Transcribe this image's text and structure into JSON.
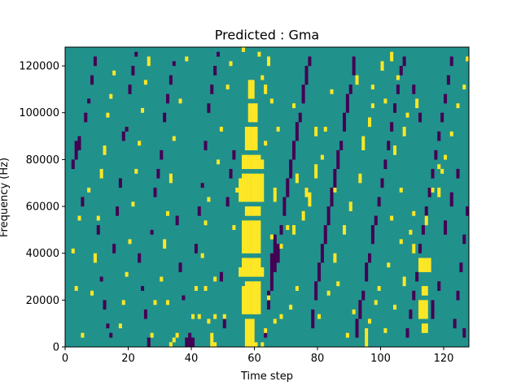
{
  "chart_data": {
    "type": "heatmap",
    "title": "Predicted : Gma",
    "xlabel": "Time step",
    "ylabel": "Frequency (Hz)",
    "xlim": [
      0,
      128
    ],
    "ylim": [
      0,
      128000
    ],
    "xticks": [
      0,
      20,
      40,
      60,
      80,
      100,
      120
    ],
    "yticks": [
      0,
      20000,
      40000,
      60000,
      80000,
      100000,
      120000
    ],
    "grid": false,
    "legend": "none",
    "colormap": "viridis",
    "value_levels": {
      "low": 0,
      "mid": 0.5,
      "high": 1
    },
    "colors": {
      "low": "#440154",
      "mid": "#21918c",
      "high": "#fde725"
    },
    "n_time_steps": 128,
    "n_freq_bins": 64,
    "freq_bin_hz": 2000,
    "high_cells": [
      [
        57,
        0,
        6
      ],
      [
        58,
        0,
        6
      ],
      [
        59,
        0,
        6
      ],
      [
        60,
        0,
        1
      ],
      [
        56,
        7,
        13
      ],
      [
        57,
        7,
        14
      ],
      [
        58,
        7,
        14
      ],
      [
        59,
        7,
        14
      ],
      [
        60,
        7,
        14
      ],
      [
        61,
        7,
        14
      ],
      [
        55,
        15,
        17
      ],
      [
        56,
        15,
        19
      ],
      [
        57,
        15,
        19
      ],
      [
        58,
        15,
        19
      ],
      [
        59,
        15,
        19
      ],
      [
        60,
        15,
        19
      ],
      [
        61,
        15,
        19
      ],
      [
        62,
        15,
        17
      ],
      [
        56,
        20,
        27
      ],
      [
        57,
        20,
        27
      ],
      [
        58,
        20,
        27
      ],
      [
        59,
        20,
        27
      ],
      [
        60,
        20,
        27
      ],
      [
        61,
        20,
        27
      ],
      [
        57,
        28,
        30
      ],
      [
        58,
        28,
        30
      ],
      [
        59,
        28,
        30
      ],
      [
        60,
        28,
        30
      ],
      [
        61,
        28,
        30
      ],
      [
        55,
        31,
        36
      ],
      [
        56,
        31,
        37
      ],
      [
        57,
        31,
        37
      ],
      [
        58,
        31,
        37
      ],
      [
        59,
        31,
        37
      ],
      [
        60,
        31,
        37
      ],
      [
        61,
        31,
        37
      ],
      [
        62,
        31,
        37
      ],
      [
        56,
        38,
        41
      ],
      [
        57,
        38,
        41
      ],
      [
        58,
        38,
        41
      ],
      [
        59,
        38,
        41
      ],
      [
        60,
        38,
        41
      ],
      [
        61,
        38,
        41
      ],
      [
        57,
        42,
        47
      ],
      [
        58,
        42,
        47
      ],
      [
        59,
        42,
        47
      ],
      [
        60,
        42,
        47
      ],
      [
        58,
        48,
        52
      ],
      [
        59,
        48,
        52
      ],
      [
        60,
        48,
        52
      ],
      [
        58,
        53,
        57
      ],
      [
        59,
        53,
        57
      ],
      [
        112,
        16,
        19
      ],
      [
        113,
        16,
        19
      ],
      [
        114,
        16,
        19
      ],
      [
        115,
        16,
        19
      ],
      [
        113,
        11,
        13
      ],
      [
        114,
        11,
        13
      ],
      [
        112,
        6,
        10
      ],
      [
        113,
        6,
        10
      ],
      [
        114,
        6,
        10
      ],
      [
        113,
        3,
        5
      ],
      [
        114,
        3,
        5
      ],
      [
        119,
        37,
        38
      ],
      [
        118,
        32,
        34
      ],
      [
        114,
        26,
        28
      ],
      [
        33,
        0,
        1
      ],
      [
        34,
        1,
        2
      ],
      [
        35,
        2,
        3
      ],
      [
        46,
        0,
        3
      ],
      [
        47,
        0,
        1
      ],
      [
        45,
        5,
        6
      ],
      [
        47,
        6,
        7
      ],
      [
        50,
        6,
        7
      ],
      [
        42,
        6,
        7
      ],
      [
        32,
        9,
        10
      ],
      [
        44,
        12,
        13
      ],
      [
        47,
        14,
        15
      ],
      [
        62,
        0,
        1
      ],
      [
        63,
        3,
        4
      ],
      [
        66,
        5,
        6
      ],
      [
        68,
        6,
        7
      ],
      [
        64,
        10,
        11
      ],
      [
        71,
        8,
        9
      ],
      [
        73,
        12,
        13
      ],
      [
        68,
        21,
        22
      ],
      [
        70,
        25,
        26
      ],
      [
        65,
        23,
        24
      ],
      [
        66,
        31,
        34
      ],
      [
        63,
        43,
        44
      ],
      [
        62,
        57,
        58
      ],
      [
        63,
        54,
        56
      ],
      [
        65,
        52,
        53
      ],
      [
        64,
        60,
        62
      ],
      [
        61,
        62,
        63
      ],
      [
        56,
        63,
        64
      ],
      [
        62,
        38,
        40
      ],
      [
        67,
        46,
        47
      ],
      [
        72,
        24,
        26
      ],
      [
        73,
        35,
        37
      ],
      [
        75,
        27,
        29
      ],
      [
        77,
        30,
        33
      ],
      [
        79,
        36,
        39
      ],
      [
        81,
        40,
        41
      ],
      [
        76,
        32,
        34
      ],
      [
        85,
        33,
        34
      ],
      [
        82,
        46,
        47
      ],
      [
        84,
        54,
        55
      ],
      [
        72,
        51,
        52
      ],
      [
        79,
        45,
        47
      ],
      [
        80,
        6,
        7
      ],
      [
        83,
        11,
        12
      ],
      [
        86,
        13,
        14
      ],
      [
        85,
        18,
        20
      ],
      [
        88,
        24,
        26
      ],
      [
        90,
        29,
        31
      ],
      [
        93,
        35,
        37
      ],
      [
        94,
        42,
        45
      ],
      [
        96,
        47,
        49
      ],
      [
        97,
        51,
        52
      ],
      [
        92,
        56,
        58
      ],
      [
        100,
        59,
        61
      ],
      [
        103,
        61,
        63
      ],
      [
        95,
        0,
        4
      ],
      [
        96,
        5,
        6
      ],
      [
        98,
        9,
        10
      ],
      [
        101,
        3,
        4
      ],
      [
        104,
        8,
        9
      ],
      [
        107,
        13,
        15
      ],
      [
        110,
        20,
        22
      ],
      [
        109,
        24,
        25
      ],
      [
        103,
        27,
        28
      ],
      [
        106,
        33,
        34
      ],
      [
        104,
        41,
        43
      ],
      [
        107,
        45,
        47
      ],
      [
        108,
        49,
        50
      ],
      [
        101,
        52,
        53
      ],
      [
        97,
        55,
        56
      ],
      [
        105,
        57,
        58
      ],
      [
        111,
        51,
        53
      ],
      [
        118,
        38,
        39
      ],
      [
        2,
        20,
        21
      ],
      [
        4,
        27,
        28
      ],
      [
        3,
        12,
        13
      ],
      [
        5,
        2,
        3
      ],
      [
        7,
        33,
        34
      ],
      [
        8,
        11,
        12
      ],
      [
        9,
        18,
        20
      ],
      [
        10,
        27,
        28
      ],
      [
        11,
        36,
        38
      ],
      [
        12,
        41,
        43
      ],
      [
        13,
        49,
        50
      ],
      [
        14,
        53,
        54
      ],
      [
        15,
        58,
        59
      ],
      [
        17,
        4,
        5
      ],
      [
        18,
        9,
        10
      ],
      [
        19,
        15,
        16
      ],
      [
        20,
        22,
        23
      ],
      [
        21,
        30,
        31
      ],
      [
        22,
        37,
        38
      ],
      [
        23,
        43,
        44
      ],
      [
        24,
        50,
        51
      ],
      [
        25,
        56,
        57
      ],
      [
        26,
        60,
        62
      ],
      [
        27,
        2,
        3
      ],
      [
        28,
        9,
        10
      ],
      [
        30,
        14,
        15
      ],
      [
        31,
        21,
        23
      ],
      [
        32,
        28,
        29
      ],
      [
        33,
        35,
        37
      ],
      [
        34,
        44,
        45
      ],
      [
        36,
        52,
        53
      ],
      [
        38,
        61,
        62
      ],
      [
        40,
        6,
        7
      ],
      [
        41,
        12,
        13
      ],
      [
        43,
        19,
        20
      ],
      [
        44,
        26,
        27
      ],
      [
        45,
        31,
        32
      ],
      [
        48,
        39,
        40
      ],
      [
        49,
        46,
        47
      ],
      [
        51,
        55,
        56
      ],
      [
        52,
        60,
        61
      ],
      [
        53,
        25,
        26
      ],
      [
        54,
        33,
        34
      ],
      [
        89,
        2,
        3
      ],
      [
        91,
        7,
        8
      ],
      [
        99,
        12,
        13
      ],
      [
        102,
        17,
        18
      ],
      [
        106,
        22,
        23
      ],
      [
        110,
        28,
        29
      ],
      [
        116,
        33,
        34
      ],
      [
        120,
        40,
        41
      ],
      [
        122,
        45,
        46
      ],
      [
        124,
        51,
        52
      ],
      [
        126,
        55,
        56
      ],
      [
        127,
        61,
        62
      ]
    ],
    "low_cells": [
      [
        2,
        38,
        40
      ],
      [
        3,
        40,
        44
      ],
      [
        4,
        42,
        45
      ],
      [
        5,
        30,
        32
      ],
      [
        6,
        48,
        50
      ],
      [
        7,
        52,
        53
      ],
      [
        8,
        56,
        58
      ],
      [
        9,
        60,
        62
      ],
      [
        10,
        24,
        26
      ],
      [
        11,
        14,
        15
      ],
      [
        12,
        8,
        10
      ],
      [
        13,
        4,
        5
      ],
      [
        14,
        2,
        3
      ],
      [
        15,
        20,
        22
      ],
      [
        16,
        28,
        30
      ],
      [
        17,
        34,
        36
      ],
      [
        18,
        44,
        46
      ],
      [
        19,
        46,
        47
      ],
      [
        20,
        54,
        56
      ],
      [
        21,
        58,
        60
      ],
      [
        22,
        62,
        63
      ],
      [
        23,
        18,
        20
      ],
      [
        24,
        12,
        13
      ],
      [
        25,
        6,
        8
      ],
      [
        26,
        0,
        2
      ],
      [
        27,
        24,
        25
      ],
      [
        28,
        32,
        34
      ],
      [
        29,
        36,
        38
      ],
      [
        30,
        40,
        42
      ],
      [
        31,
        48,
        50
      ],
      [
        32,
        52,
        54
      ],
      [
        33,
        56,
        58
      ],
      [
        34,
        60,
        61
      ],
      [
        35,
        26,
        28
      ],
      [
        36,
        16,
        18
      ],
      [
        37,
        10,
        11
      ],
      [
        38,
        0,
        2
      ],
      [
        39,
        0,
        3
      ],
      [
        40,
        0,
        2
      ],
      [
        41,
        20,
        22
      ],
      [
        42,
        28,
        30
      ],
      [
        43,
        34,
        35
      ],
      [
        44,
        42,
        44
      ],
      [
        45,
        50,
        52
      ],
      [
        46,
        54,
        56
      ],
      [
        47,
        58,
        60
      ],
      [
        48,
        62,
        63
      ],
      [
        49,
        14,
        16
      ],
      [
        50,
        4,
        6
      ],
      [
        51,
        30,
        32
      ],
      [
        52,
        36,
        38
      ],
      [
        53,
        40,
        42
      ],
      [
        63,
        2,
        4
      ],
      [
        64,
        8,
        12
      ],
      [
        65,
        12,
        20
      ],
      [
        66,
        16,
        24
      ],
      [
        67,
        18,
        22
      ],
      [
        68,
        24,
        26
      ],
      [
        69,
        28,
        32
      ],
      [
        70,
        32,
        36
      ],
      [
        71,
        36,
        40
      ],
      [
        72,
        40,
        44
      ],
      [
        73,
        44,
        48
      ],
      [
        74,
        48,
        50
      ],
      [
        75,
        52,
        56
      ],
      [
        76,
        56,
        60
      ],
      [
        77,
        60,
        62
      ],
      [
        78,
        4,
        8
      ],
      [
        79,
        10,
        14
      ],
      [
        80,
        14,
        18
      ],
      [
        81,
        18,
        22
      ],
      [
        82,
        22,
        26
      ],
      [
        83,
        26,
        30
      ],
      [
        84,
        30,
        34
      ],
      [
        85,
        34,
        38
      ],
      [
        86,
        38,
        42
      ],
      [
        87,
        42,
        44
      ],
      [
        88,
        46,
        50
      ],
      [
        89,
        50,
        54
      ],
      [
        90,
        54,
        56
      ],
      [
        91,
        58,
        62
      ],
      [
        92,
        2,
        6
      ],
      [
        93,
        6,
        10
      ],
      [
        94,
        10,
        12
      ],
      [
        95,
        14,
        18
      ],
      [
        96,
        18,
        20
      ],
      [
        97,
        22,
        26
      ],
      [
        98,
        26,
        28
      ],
      [
        99,
        30,
        32
      ],
      [
        100,
        34,
        36
      ],
      [
        101,
        38,
        40
      ],
      [
        102,
        42,
        44
      ],
      [
        103,
        46,
        48
      ],
      [
        104,
        50,
        52
      ],
      [
        105,
        54,
        56
      ],
      [
        106,
        58,
        60
      ],
      [
        107,
        60,
        62
      ],
      [
        108,
        2,
        4
      ],
      [
        109,
        6,
        8
      ],
      [
        110,
        10,
        12
      ],
      [
        111,
        14,
        16
      ],
      [
        112,
        20,
        22
      ],
      [
        113,
        24,
        26
      ],
      [
        114,
        28,
        30
      ],
      [
        115,
        32,
        34
      ],
      [
        116,
        36,
        38
      ],
      [
        117,
        40,
        42
      ],
      [
        118,
        44,
        46
      ],
      [
        119,
        48,
        50
      ],
      [
        120,
        52,
        54
      ],
      [
        121,
        56,
        58
      ],
      [
        122,
        60,
        62
      ],
      [
        123,
        4,
        6
      ],
      [
        124,
        10,
        12
      ],
      [
        125,
        16,
        18
      ],
      [
        126,
        22,
        24
      ],
      [
        127,
        28,
        30
      ],
      [
        112,
        48,
        50
      ],
      [
        110,
        54,
        56
      ],
      [
        116,
        6,
        10
      ],
      [
        118,
        12,
        14
      ],
      [
        120,
        24,
        27
      ],
      [
        122,
        30,
        33
      ],
      [
        124,
        36,
        38
      ],
      [
        126,
        2,
        4
      ]
    ]
  }
}
